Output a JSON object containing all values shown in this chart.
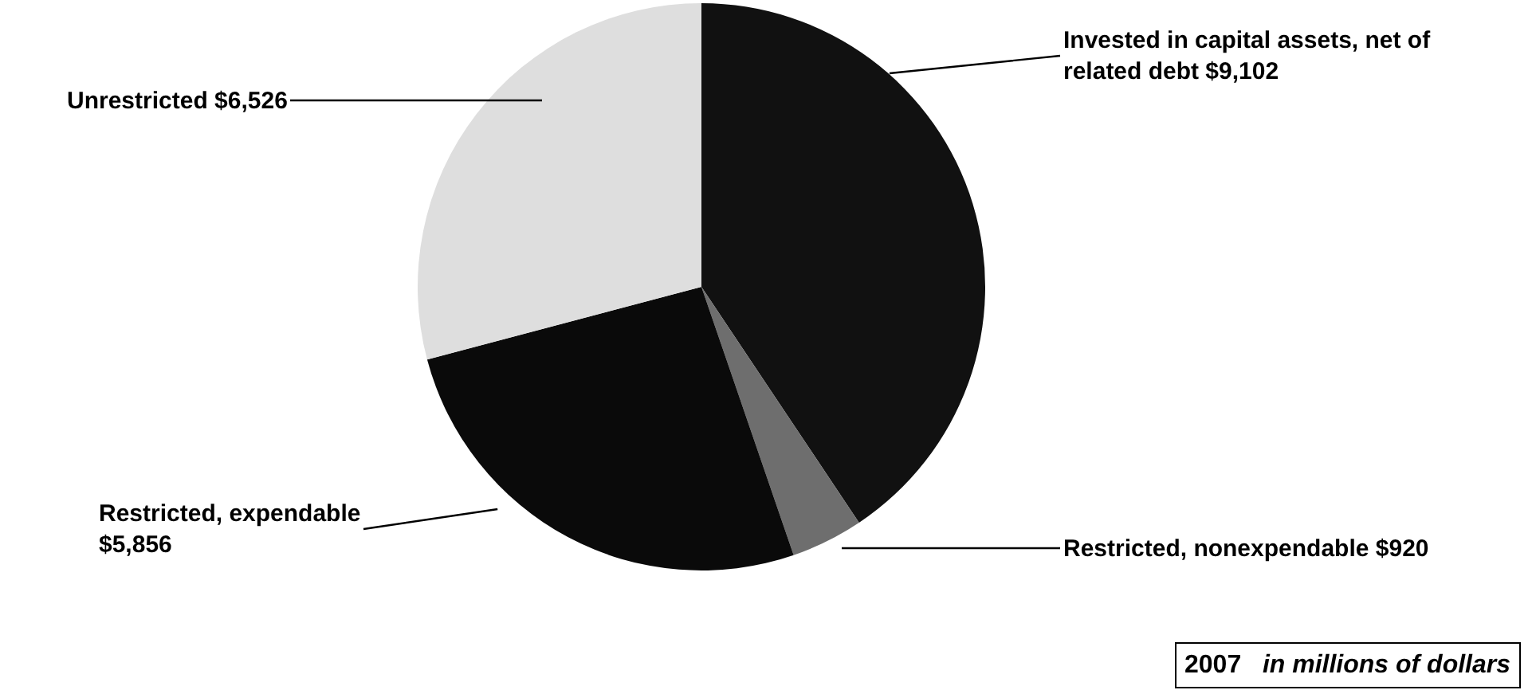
{
  "chart_data": {
    "type": "pie",
    "categories": [
      "Invested in capital assets, net of related debt",
      "Restricted, nonexpendable",
      "Restricted, expendable",
      "Unrestricted"
    ],
    "values": [
      9102,
      920,
      5856,
      6526
    ],
    "value_labels": [
      "$9,102",
      "$920",
      "$5,856",
      "$6,526"
    ],
    "colors": [
      "#111111",
      "#6e6e6e",
      "#0a0a0a",
      "#dedede"
    ],
    "annotations": [
      "2007",
      "in millions of dollars"
    ],
    "legend": false
  }
}
